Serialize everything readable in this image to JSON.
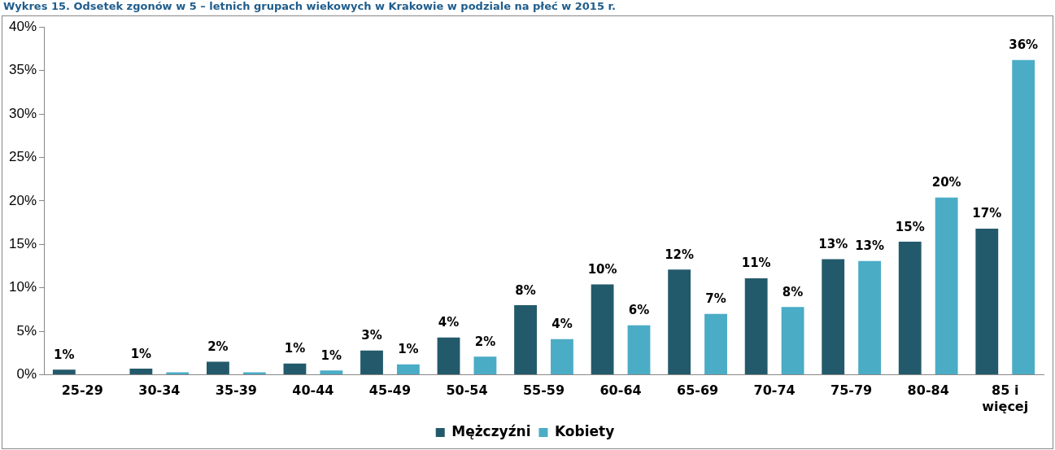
{
  "chart_data": {
    "type": "bar",
    "title": "Wykres 15. Odsetek zgonów w 5 – letnich grupach wiekowych w Krakowie w podziale na płeć w 2015 r.",
    "categories": [
      "25-29",
      "30-34",
      "35-39",
      "40-44",
      "45-49",
      "50-54",
      "55-59",
      "60-64",
      "65-69",
      "70-74",
      "75-79",
      "80-84",
      "85 i więcej"
    ],
    "series": [
      {
        "name": "Mężczyźni",
        "color": "#235a6b",
        "values": [
          0.6,
          0.7,
          1.5,
          1.3,
          2.8,
          4.3,
          8.0,
          10.4,
          12.1,
          11.1,
          13.3,
          15.3,
          16.8
        ],
        "value_labels": [
          "1%",
          "1%",
          "2%",
          "1%",
          "3%",
          "4%",
          "8%",
          "10%",
          "12%",
          "11%",
          "13%",
          "15%",
          "17%"
        ]
      },
      {
        "name": "Kobiety",
        "color": "#4bacc6",
        "values": [
          null,
          0.3,
          0.3,
          0.5,
          1.2,
          2.1,
          4.1,
          5.7,
          7.0,
          7.8,
          13.1,
          20.4,
          36.2
        ],
        "value_labels": [
          null,
          null,
          null,
          "1%",
          "1%",
          "2%",
          "4%",
          "6%",
          "7%",
          "8%",
          "13%",
          "20%",
          "36%"
        ]
      }
    ],
    "ylim": [
      0,
      40
    ],
    "yticks": [
      {
        "value": 0,
        "label": "0%"
      },
      {
        "value": 5,
        "label": "5%"
      },
      {
        "value": 10,
        "label": "10%"
      },
      {
        "value": 15,
        "label": "15%"
      },
      {
        "value": 20,
        "label": "20%"
      },
      {
        "value": 25,
        "label": "25%"
      },
      {
        "value": 30,
        "label": "30%"
      },
      {
        "value": 35,
        "label": "35%"
      },
      {
        "value": 40,
        "label": "40%"
      }
    ],
    "grid": false,
    "legend": "bottom"
  }
}
